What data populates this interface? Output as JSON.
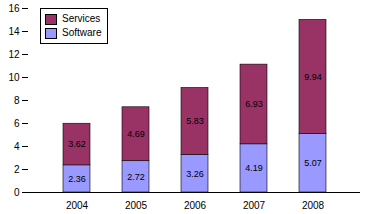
{
  "chart_data": {
    "type": "bar",
    "stacked": true,
    "data_labels": true,
    "grid": false,
    "legend": "top-left",
    "categories": [
      "2004",
      "2005",
      "2006",
      "2007",
      "2008"
    ],
    "series": [
      {
        "name": "Software",
        "color": "#9999ff",
        "values": [
          2.36,
          2.72,
          3.26,
          4.19,
          5.07
        ]
      },
      {
        "name": "Services",
        "color": "#993366",
        "values": [
          3.62,
          4.69,
          5.83,
          6.93,
          9.94
        ]
      }
    ],
    "ylim": [
      0,
      16
    ],
    "yticks": [
      0,
      2,
      4,
      6,
      8,
      10,
      12,
      14,
      16
    ]
  }
}
